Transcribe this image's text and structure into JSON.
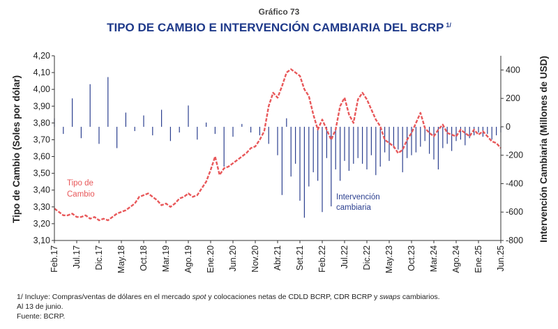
{
  "figure": {
    "number": "Gráfico 73",
    "title": "TIPO DE CAMBIO E INTERVENCIÓN CAMBIARIA DEL BCRP",
    "title_note": "1/"
  },
  "notes": {
    "line1_a": "1/ Incluye: Compras/ventas de dólares en el mercado ",
    "line1_b": "spot",
    "line1_c": " y colocaciones netas de CDLD BCRP, CDR BCRP y ",
    "line1_d": "swaps",
    "line1_e": " cambiarios.",
    "line2": "Al 13 de junio.",
    "line3": "Fuente: BCRP."
  },
  "colors": {
    "exchange_rate": "#e8585a",
    "intervention": "#2b3f8f",
    "title": "#1f3a8a"
  },
  "chart_data": {
    "type": "line",
    "xlabels": [
      "Feb.17",
      "Jul.17",
      "Dic.17",
      "May.18",
      "Oct.18",
      "Mar.19",
      "Ago.19",
      "Ene.20",
      "Jun.20",
      "Nov.20",
      "Abr.21",
      "Set.21",
      "Feb.22",
      "Jul.22",
      "Dic.22",
      "May.23",
      "Oct.23",
      "Mar.24",
      "Ago.24",
      "Ene.25",
      "Jun.25"
    ],
    "ylabel_left": "Tipo de Cambio (Soles por dólar)",
    "ylabel_right": "Intervención Cambiaria (Millones de USD)",
    "yticks_left": [
      "3,10",
      "3,20",
      "3,30",
      "3,40",
      "3,50",
      "3,60",
      "3,70",
      "3,80",
      "3,90",
      "4,00",
      "4,10",
      "4,20"
    ],
    "yticks_right": [
      "-800",
      "-600",
      "-400",
      "-200",
      "0",
      "200",
      "400"
    ],
    "ylim_left": [
      3.1,
      4.2
    ],
    "ylim_right": [
      -800,
      500
    ],
    "legend_exchange": [
      "Tipo de",
      "Cambio"
    ],
    "legend_intervention": [
      "Intervención",
      "cambiaria"
    ],
    "series": [
      {
        "name": "Tipo de Cambio",
        "axis": "left",
        "style": "dashed",
        "months": [
          0,
          1,
          2,
          3,
          4,
          5,
          6,
          7,
          8,
          9,
          10,
          11,
          12,
          13,
          14,
          15,
          16,
          17,
          18,
          19,
          20,
          21,
          22,
          23,
          24,
          25,
          26,
          27,
          28,
          29,
          30,
          31,
          32,
          33,
          34,
          35,
          36,
          37,
          38,
          39,
          40,
          41,
          42,
          43,
          44,
          45,
          46,
          47,
          48,
          49,
          50,
          51,
          52,
          53,
          54,
          55,
          56,
          57,
          58,
          59,
          60,
          61,
          62,
          63,
          64,
          65,
          66,
          67,
          68,
          69,
          70,
          71,
          72,
          73,
          74,
          75,
          76,
          77,
          78,
          79,
          80,
          81,
          82,
          83,
          84,
          85,
          86,
          87,
          88,
          89,
          90,
          91,
          92,
          93,
          94,
          95,
          96,
          97,
          98,
          99,
          100
        ],
        "values": [
          3.29,
          3.27,
          3.25,
          3.25,
          3.26,
          3.24,
          3.24,
          3.25,
          3.23,
          3.24,
          3.22,
          3.23,
          3.22,
          3.24,
          3.26,
          3.27,
          3.28,
          3.3,
          3.32,
          3.36,
          3.37,
          3.38,
          3.36,
          3.34,
          3.31,
          3.32,
          3.3,
          3.32,
          3.35,
          3.36,
          3.38,
          3.36,
          3.37,
          3.41,
          3.45,
          3.52,
          3.6,
          3.49,
          3.53,
          3.54,
          3.56,
          3.58,
          3.6,
          3.62,
          3.65,
          3.66,
          3.7,
          3.75,
          3.9,
          3.98,
          3.95,
          4.02,
          4.1,
          4.12,
          4.1,
          4.08,
          4.0,
          3.96,
          3.85,
          3.76,
          3.82,
          3.76,
          3.7,
          3.76,
          3.9,
          3.95,
          3.85,
          3.8,
          3.94,
          3.98,
          3.94,
          3.88,
          3.82,
          3.78,
          3.7,
          3.68,
          3.66,
          3.62,
          3.64,
          3.7,
          3.74,
          3.8,
          3.86,
          3.77,
          3.74,
          3.72,
          3.76,
          3.79,
          3.74,
          3.73,
          3.72,
          3.76,
          3.74,
          3.72,
          3.76,
          3.73,
          3.75,
          3.72,
          3.69,
          3.68,
          3.65
        ]
      },
      {
        "name": "Intervención cambiaria",
        "axis": "right",
        "style": "bars",
        "months": [
          0,
          2,
          4,
          6,
          8,
          10,
          12,
          14,
          16,
          18,
          20,
          22,
          24,
          26,
          28,
          30,
          32,
          34,
          36,
          38,
          40,
          42,
          44,
          46,
          48,
          50,
          51,
          52,
          53,
          54,
          55,
          56,
          57,
          58,
          59,
          60,
          61,
          62,
          63,
          64,
          65,
          66,
          67,
          68,
          69,
          70,
          71,
          72,
          73,
          74,
          75,
          76,
          77,
          78,
          79,
          80,
          81,
          82,
          83,
          84,
          85,
          86,
          87,
          88,
          89,
          90,
          91,
          92,
          93,
          94,
          95,
          96,
          97,
          98,
          99,
          100
        ],
        "values": [
          60,
          -50,
          200,
          -80,
          300,
          -120,
          350,
          -150,
          100,
          -30,
          80,
          -60,
          120,
          -100,
          -40,
          150,
          -90,
          30,
          -50,
          -280,
          -70,
          20,
          -40,
          -60,
          -120,
          -200,
          -480,
          60,
          -350,
          -260,
          -520,
          -640,
          -420,
          -320,
          -380,
          -600,
          -220,
          -560,
          -300,
          -380,
          -240,
          -310,
          -260,
          -220,
          -260,
          -300,
          -200,
          -340,
          -280,
          -180,
          -240,
          -150,
          -160,
          -320,
          -220,
          -200,
          -180,
          -140,
          -100,
          -190,
          -230,
          -300,
          -150,
          -120,
          -170,
          -100,
          -90,
          -130,
          -80,
          -60,
          -40,
          -70,
          -50,
          -90,
          -60,
          -40
        ]
      }
    ]
  }
}
